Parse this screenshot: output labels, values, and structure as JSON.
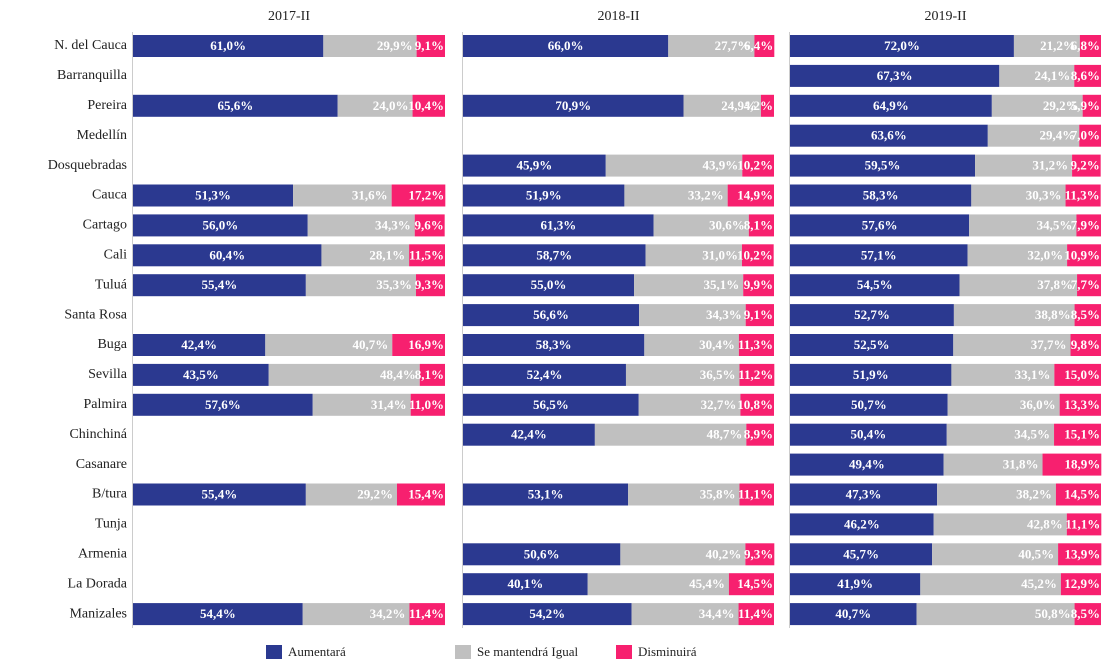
{
  "chart_data": [
    {
      "type": "stacked_barh",
      "title": "2017-II",
      "xlim": [
        0,
        100
      ],
      "categories": [
        "N. del Cauca",
        "Barranquilla",
        "Pereira",
        "Medellín",
        "Dosquebradas",
        "Cauca",
        "Cartago",
        "Cali",
        "Tuluá",
        "Santa Rosa",
        "Buga",
        "Sevilla",
        "Palmira",
        "Chinchiná",
        "Casanare",
        "B/tura",
        "Tunja",
        "Armenia",
        "La Dorada",
        "Manizales"
      ],
      "series": [
        {
          "name": "Aumentará",
          "color": "#2b3990",
          "values": [
            61.0,
            null,
            65.6,
            null,
            null,
            51.3,
            56.0,
            60.4,
            55.4,
            null,
            42.4,
            43.5,
            57.6,
            null,
            null,
            55.4,
            null,
            null,
            null,
            54.4
          ],
          "value_labels": [
            "61,0%",
            null,
            "65,6%",
            null,
            null,
            "51,3%",
            "56,0%",
            "60,4%",
            "55,4%",
            null,
            "42,4%",
            "43,5%",
            "57,6%",
            null,
            null,
            "55,4%",
            null,
            null,
            null,
            "54,4%"
          ]
        },
        {
          "name": "Se mantendrá Igual",
          "color": "#c0c0c0",
          "values": [
            29.9,
            null,
            24.0,
            null,
            null,
            31.6,
            34.3,
            28.1,
            35.3,
            null,
            40.7,
            48.4,
            31.4,
            null,
            null,
            29.2,
            null,
            null,
            null,
            34.2
          ],
          "value_labels": [
            "29,9%",
            null,
            "24,0%",
            null,
            null,
            "31,6%",
            "34,3%",
            "28,1%",
            "35,3%",
            null,
            "40,7%",
            "48,4%",
            "31,4%",
            null,
            null,
            "29,2%",
            null,
            null,
            null,
            "34,2%"
          ]
        },
        {
          "name": "Disminuirá",
          "color": "#f7206f",
          "values": [
            9.1,
            null,
            10.4,
            null,
            null,
            17.2,
            9.6,
            11.5,
            9.3,
            null,
            16.9,
            8.1,
            11.0,
            null,
            null,
            15.4,
            null,
            null,
            null,
            11.4
          ],
          "value_labels": [
            "9,1%",
            null,
            "10,4%",
            null,
            null,
            "17,2%",
            "9,6%",
            "11,5%",
            "9,3%",
            null,
            "16,9%",
            "8,1%",
            "11,0%",
            null,
            null,
            "15,4%",
            null,
            null,
            null,
            "11,4%"
          ]
        }
      ]
    },
    {
      "type": "stacked_barh",
      "title": "2018-II",
      "xlim": [
        0,
        100
      ],
      "categories": [
        "N. del Cauca",
        "Barranquilla",
        "Pereira",
        "Medellín",
        "Dosquebradas",
        "Cauca",
        "Cartago",
        "Cali",
        "Tuluá",
        "Santa Rosa",
        "Buga",
        "Sevilla",
        "Palmira",
        "Chinchiná",
        "Casanare",
        "B/tura",
        "Tunja",
        "Armenia",
        "La Dorada",
        "Manizales"
      ],
      "series": [
        {
          "name": "Aumentará",
          "color": "#2b3990",
          "values": [
            66.0,
            null,
            70.9,
            null,
            45.9,
            51.9,
            61.3,
            58.7,
            55.0,
            56.6,
            58.3,
            52.4,
            56.5,
            42.4,
            null,
            53.1,
            null,
            50.6,
            40.1,
            54.2
          ],
          "value_labels": [
            "66,0%",
            null,
            "70,9%",
            null,
            "45,9%",
            "51,9%",
            "61,3%",
            "58,7%",
            "55,0%",
            "56,6%",
            "58,3%",
            "52,4%",
            "56,5%",
            "42,4%",
            null,
            "53,1%",
            null,
            "50,6%",
            "40,1%",
            "54,2%"
          ]
        },
        {
          "name": "Se mantendrá Igual",
          "color": "#c0c0c0",
          "values": [
            27.7,
            null,
            24.9,
            null,
            43.9,
            33.2,
            30.6,
            31.0,
            35.1,
            34.3,
            30.4,
            36.5,
            32.7,
            48.7,
            null,
            35.8,
            null,
            40.2,
            45.4,
            34.4
          ],
          "value_labels": [
            "27,7%",
            null,
            "24,9%",
            null,
            "43,9%",
            "33,2%",
            "30,6%",
            "31,0%",
            "35,1%",
            "34,3%",
            "30,4%",
            "36,5%",
            "32,7%",
            "48,7%",
            null,
            "35,8%",
            null,
            "40,2%",
            "45,4%",
            "34,4%"
          ]
        },
        {
          "name": "Disminuirá",
          "color": "#f7206f",
          "values": [
            6.4,
            null,
            4.2,
            null,
            10.2,
            14.9,
            8.1,
            10.2,
            9.9,
            9.1,
            11.3,
            11.2,
            10.8,
            8.9,
            null,
            11.1,
            null,
            9.3,
            14.5,
            11.4
          ],
          "value_labels": [
            "6,4%",
            null,
            "4,2%",
            null,
            "10,2%",
            "14,9%",
            "8,1%",
            "10,2%",
            "9,9%",
            "9,1%",
            "11,3%",
            "11,2%",
            "10,8%",
            "8,9%",
            null,
            "11,1%",
            null,
            "9,3%",
            "14,5%",
            "11,4%"
          ]
        }
      ]
    },
    {
      "type": "stacked_barh",
      "title": "2019-II",
      "xlim": [
        0,
        100
      ],
      "categories": [
        "N. del Cauca",
        "Barranquilla",
        "Pereira",
        "Medellín",
        "Dosquebradas",
        "Cauca",
        "Cartago",
        "Cali",
        "Tuluá",
        "Santa Rosa",
        "Buga",
        "Sevilla",
        "Palmira",
        "Chinchiná",
        "Casanare",
        "B/tura",
        "Tunja",
        "Armenia",
        "La Dorada",
        "Manizales"
      ],
      "series": [
        {
          "name": "Aumentará",
          "color": "#2b3990",
          "values": [
            72.0,
            67.3,
            64.9,
            63.6,
            59.5,
            58.3,
            57.6,
            57.1,
            54.5,
            52.7,
            52.5,
            51.9,
            50.7,
            50.4,
            49.4,
            47.3,
            46.2,
            45.7,
            41.9,
            40.7
          ],
          "value_labels": [
            "72,0%",
            "67,3%",
            "64,9%",
            "63,6%",
            "59,5%",
            "58,3%",
            "57,6%",
            "57,1%",
            "54,5%",
            "52,7%",
            "52,5%",
            "51,9%",
            "50,7%",
            "50,4%",
            "49,4%",
            "47,3%",
            "46,2%",
            "45,7%",
            "41,9%",
            "40,7%"
          ]
        },
        {
          "name": "Se mantendrá Igual",
          "color": "#c0c0c0",
          "values": [
            21.2,
            24.1,
            29.2,
            29.4,
            31.2,
            30.3,
            34.5,
            32.0,
            37.8,
            38.8,
            37.7,
            33.1,
            36.0,
            34.5,
            31.8,
            38.2,
            42.8,
            40.5,
            45.2,
            50.8
          ],
          "value_labels": [
            "21,2%",
            "24,1%",
            "29,2%",
            "29,4%",
            "31,2%",
            "30,3%",
            "34,5%",
            "32,0%",
            "37,8%",
            "38,8%",
            "37,7%",
            "33,1%",
            "36,0%",
            "34,5%",
            "31,8%",
            "38,2%",
            "42,8%",
            "40,5%",
            "45,2%",
            "50,8%"
          ]
        },
        {
          "name": "Disminuirá",
          "color": "#f7206f",
          "values": [
            6.8,
            8.6,
            5.9,
            7.0,
            9.2,
            11.3,
            7.9,
            10.9,
            7.7,
            8.5,
            9.8,
            15.0,
            13.3,
            15.1,
            18.9,
            14.5,
            11.1,
            13.9,
            12.9,
            8.5
          ],
          "value_labels": [
            "6,8%",
            "8,6%",
            "5,9%",
            "7,0%",
            "9,2%",
            "11,3%",
            "7,9%",
            "10,9%",
            "7,7%",
            "8,5%",
            "9,8%",
            "15,0%",
            "13,3%",
            "15,1%",
            "18,9%",
            "14,5%",
            "11,1%",
            "13,9%",
            "12,9%",
            "8,5%"
          ]
        }
      ]
    }
  ]
}
